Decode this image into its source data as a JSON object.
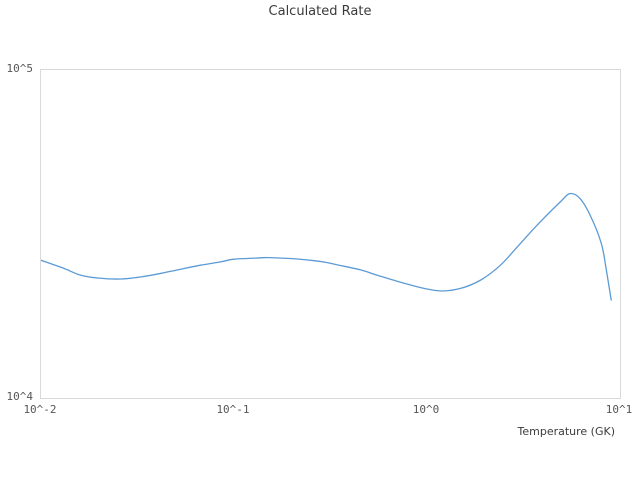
{
  "chart_data": {
    "type": "line",
    "title": "Calculated Rate",
    "xlabel": "Temperature (GK)",
    "ylabel": "",
    "x_scale": "log",
    "y_scale": "log",
    "xlim": [
      0.01,
      10
    ],
    "ylim": [
      10000,
      100000
    ],
    "grid": false,
    "legend": "none",
    "line_color": "#5b9bd5",
    "x_ticks": [
      {
        "label": "10^-2",
        "value": 0.01
      },
      {
        "label": "10^-1",
        "value": 0.1
      },
      {
        "label": "10^0",
        "value": 1
      },
      {
        "label": "10^1",
        "value": 10
      }
    ],
    "y_ticks": [
      {
        "label": "10^4",
        "value": 10000
      },
      {
        "label": "10^5",
        "value": 100000
      }
    ],
    "x": [
      0.01,
      0.013,
      0.016,
      0.02,
      0.026,
      0.033,
      0.042,
      0.053,
      0.067,
      0.085,
      0.1,
      0.13,
      0.15,
      0.2,
      0.25,
      0.3,
      0.35,
      0.45,
      0.55,
      0.7,
      0.85,
      1.0,
      1.2,
      1.5,
      1.9,
      2.4,
      3.0,
      3.8,
      4.9,
      5.5,
      6.2,
      7.0,
      8.0,
      8.5,
      9.0
    ],
    "y": [
      26300,
      24900,
      23700,
      23200,
      23050,
      23400,
      24000,
      24700,
      25400,
      26000,
      26500,
      26700,
      26800,
      26600,
      26300,
      25900,
      25400,
      24600,
      23700,
      22700,
      22000,
      21500,
      21200,
      21600,
      22900,
      25400,
      29300,
      34100,
      39600,
      42000,
      40600,
      36100,
      29600,
      24500,
      19900
    ]
  }
}
